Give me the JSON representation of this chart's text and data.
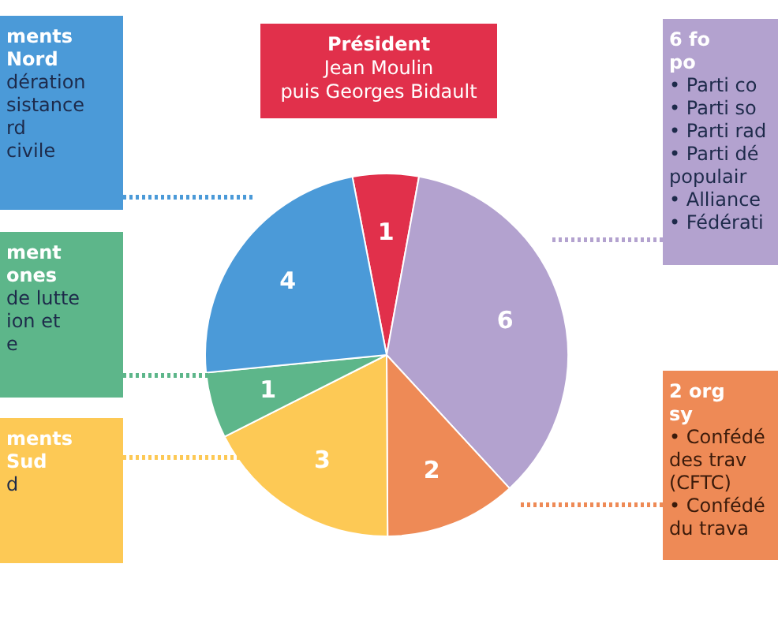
{
  "chart_data": {
    "type": "pie",
    "categories": [
      null,
      null,
      null,
      null,
      null,
      null
    ],
    "values": [
      1,
      6,
      2,
      3,
      1,
      4
    ],
    "colors": [
      "#e1304b",
      "#b3a2cf",
      "#ee8a56",
      "#fdc955",
      "#5db68a",
      "#4b9ad8"
    ],
    "data_labels": true,
    "annotations": [
      "Président\nJean Moulin\npuis Georges Bidault",
      "6 fo\npo\n• Parti co\n• Parti so\n• Parti rad\n• Parti dé\n   populair\n• Alliance\n• Fédérati",
      "2 org\nsy\n• Confédé\n   des trav\n   (CFTC)\n• Confédé\n   du trava",
      "ments\nSud\nd",
      "ment\nones\nde lutte\nion et\ne",
      "ments\nNord\ndération\nsistance\nrd\ncivile"
    ]
  }
}
